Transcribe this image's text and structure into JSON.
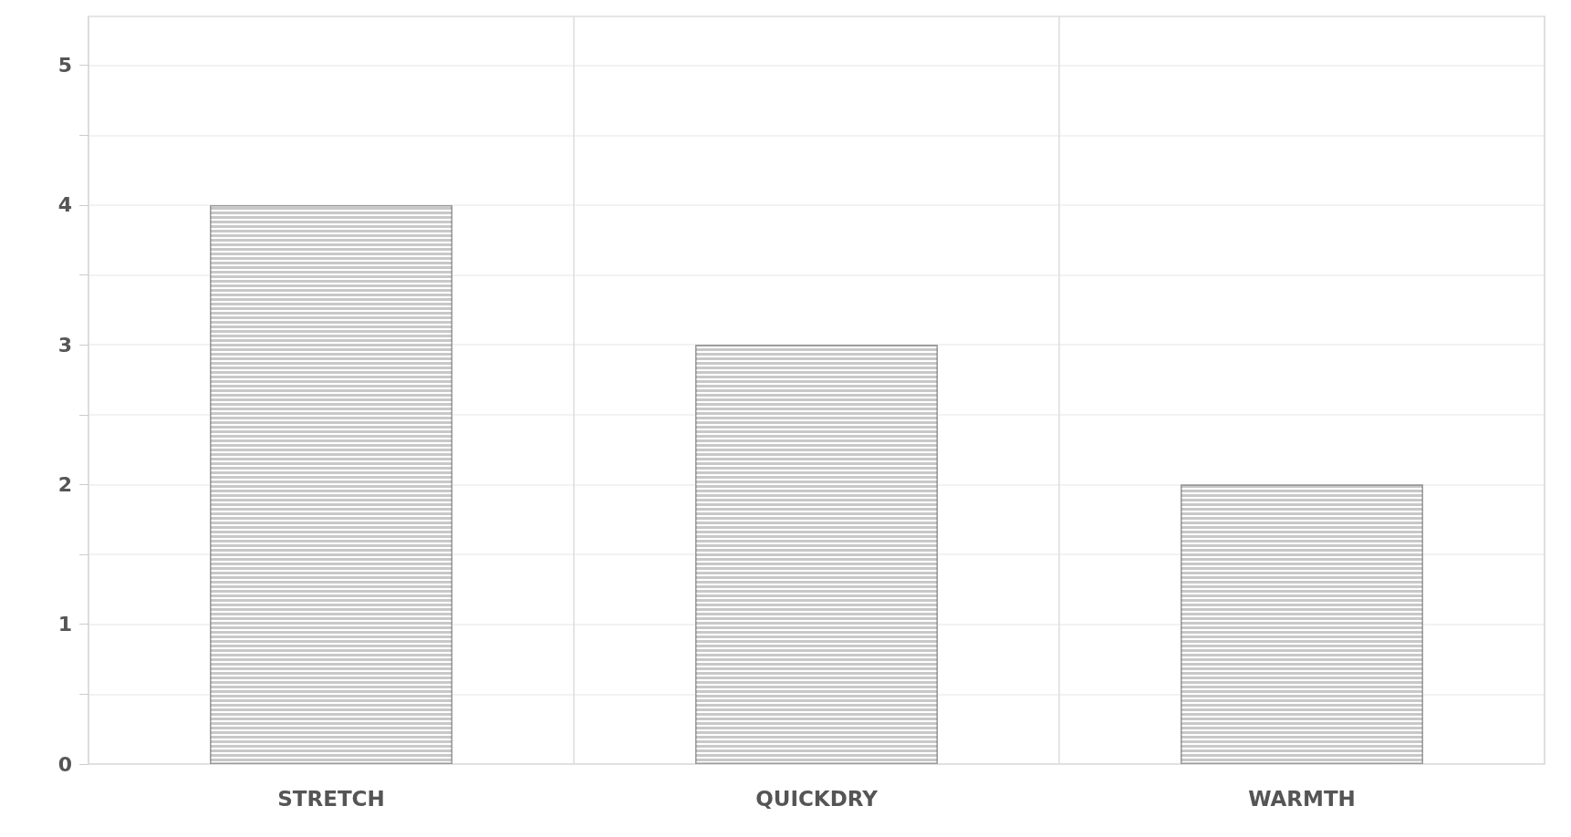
{
  "chart_data": {
    "type": "bar",
    "categories": [
      "STRETCH",
      "QUICKDRY",
      "WARMTH"
    ],
    "values": [
      4,
      3,
      2
    ],
    "color": "#c8c8c8",
    "ylim": [
      0,
      5.35
    ],
    "yticks": [
      0,
      {
        "value": 0.5,
        "label": null
      },
      1,
      {
        "value": 1.5,
        "label": null
      },
      2,
      {
        "value": 2.5,
        "label": null
      },
      3,
      {
        "value": 3.5,
        "label": null
      },
      4,
      {
        "value": 4.5,
        "label": null
      },
      5
    ],
    "grid": true
  }
}
